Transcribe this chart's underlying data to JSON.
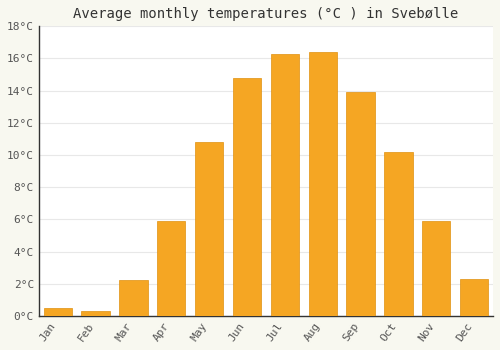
{
  "title": "Average monthly temperatures (°C ) in Svebølle",
  "months": [
    "Jan",
    "Feb",
    "Mar",
    "Apr",
    "May",
    "Jun",
    "Jul",
    "Aug",
    "Sep",
    "Oct",
    "Nov",
    "Dec"
  ],
  "values": [
    0.5,
    0.3,
    2.2,
    5.9,
    10.8,
    14.8,
    16.3,
    16.4,
    13.9,
    10.2,
    5.9,
    2.3
  ],
  "bar_color": "#F5A623",
  "bar_edge_color": "#E09010",
  "ylim": [
    0,
    18
  ],
  "ytick_step": 2,
  "background_color": "#F8F8F0",
  "plot_bg_color": "#FFFFFF",
  "grid_color": "#E8E8E8",
  "title_fontsize": 10,
  "tick_fontsize": 8
}
